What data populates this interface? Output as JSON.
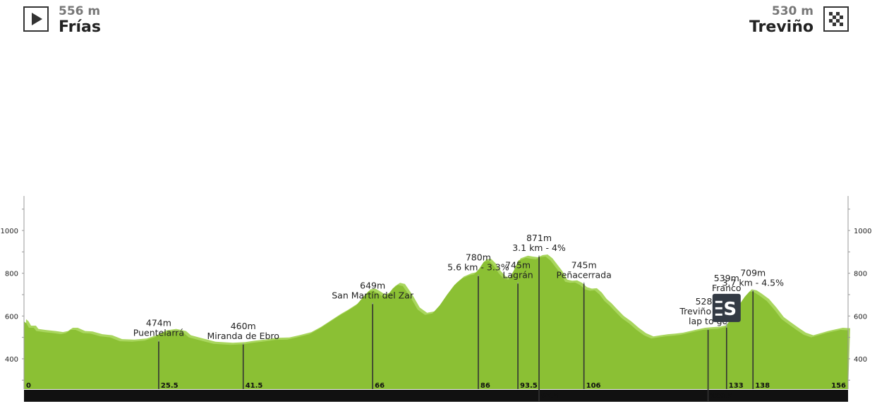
{
  "start": {
    "altitude": "556 m",
    "name": "Frías",
    "icon": "play-flag-icon"
  },
  "finish": {
    "altitude": "530 m",
    "name": "Treviño",
    "icon": "checkered-flag-icon"
  },
  "colors": {
    "terrain": "#8bc034",
    "terrain_light": "#a9d65e",
    "bar": "#111111",
    "ruler": "#333333"
  },
  "chart_data": {
    "type": "area",
    "title": "",
    "xlabel": "",
    "ylabel": "",
    "xlim": [
      0,
      156
    ],
    "ylim": [
      270,
      1170
    ],
    "y_ticks": [
      400,
      600,
      800,
      1000
    ],
    "x_ticks": [
      "0",
      "25.5",
      "41.5",
      "66",
      "86",
      "93.5",
      "106",
      "133",
      "138",
      "156"
    ],
    "x_ticks_bottom": [
      "97.5",
      "129.5"
    ],
    "profile": [
      [
        0,
        575
      ],
      [
        1,
        565
      ],
      [
        2,
        545
      ],
      [
        4,
        545
      ],
      [
        5,
        530
      ],
      [
        8,
        525
      ],
      [
        12,
        520
      ],
      [
        15,
        515
      ],
      [
        17,
        520
      ],
      [
        19,
        535
      ],
      [
        21,
        535
      ],
      [
        24,
        520
      ],
      [
        27,
        518
      ],
      [
        31,
        505
      ],
      [
        35,
        500
      ],
      [
        39,
        482
      ],
      [
        44,
        480
      ],
      [
        49,
        485
      ],
      [
        53,
        500
      ],
      [
        57,
        523
      ],
      [
        61,
        530
      ],
      [
        65,
        520
      ],
      [
        67,
        500
      ],
      [
        72,
        485
      ],
      [
        77,
        470
      ],
      [
        84,
        465
      ],
      [
        89,
        468
      ],
      [
        93,
        475
      ],
      [
        97,
        480
      ],
      [
        102,
        488
      ],
      [
        107,
        490
      ],
      [
        111,
        500
      ],
      [
        116,
        515
      ],
      [
        120,
        540
      ],
      [
        124,
        570
      ],
      [
        128,
        600
      ],
      [
        131,
        620
      ],
      [
        135,
        650
      ],
      [
        138,
        690
      ],
      [
        140,
        715
      ],
      [
        142,
        718
      ],
      [
        144,
        705
      ],
      [
        146,
        690
      ],
      [
        148,
        700
      ],
      [
        150,
        730
      ],
      [
        152,
        745
      ],
      [
        154,
        740
      ],
      [
        157,
        690
      ],
      [
        160,
        630
      ],
      [
        163,
        605
      ],
      [
        166,
        612
      ],
      [
        169,
        650
      ],
      [
        172,
        700
      ],
      [
        175,
        745
      ],
      [
        178,
        775
      ],
      [
        181,
        790
      ],
      [
        183,
        795
      ],
      [
        185,
        820
      ],
      [
        187,
        855
      ],
      [
        189,
        858
      ],
      [
        191,
        835
      ],
      [
        193,
        800
      ],
      [
        195,
        775
      ],
      [
        197,
        770
      ],
      [
        199,
        810
      ],
      [
        201,
        860
      ],
      [
        204,
        872
      ],
      [
        206,
        868
      ],
      [
        208,
        865
      ],
      [
        210,
        875
      ],
      [
        212,
        878
      ],
      [
        214,
        860
      ],
      [
        216,
        830
      ],
      [
        218,
        800
      ],
      [
        220,
        760
      ],
      [
        222,
        755
      ],
      [
        224,
        757
      ],
      [
        226,
        745
      ],
      [
        228,
        725
      ],
      [
        230,
        718
      ],
      [
        232,
        720
      ],
      [
        234,
        700
      ],
      [
        236,
        670
      ],
      [
        238,
        650
      ],
      [
        240,
        625
      ],
      [
        243,
        590
      ],
      [
        246,
        565
      ],
      [
        249,
        535
      ],
      [
        252,
        510
      ],
      [
        255,
        495
      ],
      [
        258,
        500
      ],
      [
        261,
        505
      ],
      [
        264,
        508
      ],
      [
        267,
        512
      ],
      [
        270,
        520
      ],
      [
        273,
        528
      ],
      [
        276,
        535
      ],
      [
        279,
        538
      ],
      [
        282,
        540
      ],
      [
        285,
        548
      ],
      [
        287,
        580
      ],
      [
        290,
        640
      ],
      [
        293,
        690
      ],
      [
        295,
        715
      ],
      [
        297,
        710
      ],
      [
        299,
        695
      ],
      [
        302,
        670
      ],
      [
        305,
        630
      ],
      [
        308,
        585
      ],
      [
        311,
        560
      ],
      [
        314,
        535
      ],
      [
        317,
        512
      ],
      [
        320,
        500
      ],
      [
        323,
        510
      ],
      [
        326,
        520
      ],
      [
        329,
        528
      ],
      [
        332,
        535
      ],
      [
        335,
        533
      ]
    ],
    "markers": [
      {
        "km": 25.5,
        "elev": 474,
        "lines": [
          "474m",
          "Puentelarrá"
        ]
      },
      {
        "km": 41.5,
        "elev": 460,
        "lines": [
          "460m",
          "Miranda de Ebro"
        ]
      },
      {
        "km": 66,
        "elev": 649,
        "lines": [
          "649m",
          "San Martín del Zar"
        ]
      },
      {
        "km": 86,
        "elev": 780,
        "lines": [
          "780m",
          "5.6 km - 3.3%"
        ]
      },
      {
        "km": 93.5,
        "elev": 745,
        "lines": [
          "745m",
          "Lagrán"
        ]
      },
      {
        "km": 97.5,
        "elev": 871,
        "lines": [
          "871m",
          "3.1 km - 4%"
        ]
      },
      {
        "km": 106,
        "elev": 745,
        "lines": [
          "745m",
          "Peñacerrada"
        ]
      },
      {
        "km": 129.5,
        "elev": 528,
        "lines": [
          "528m",
          "Treviño - one",
          "lap to go"
        ]
      },
      {
        "km": 133,
        "elev": 539,
        "lines": [
          "539m",
          "Franco"
        ],
        "icon": "sprint-icon"
      },
      {
        "km": 138,
        "elev": 709,
        "lines": [
          "709m",
          "3.7 km - 4.5%"
        ]
      }
    ],
    "sprint_icon_letter": "S"
  }
}
